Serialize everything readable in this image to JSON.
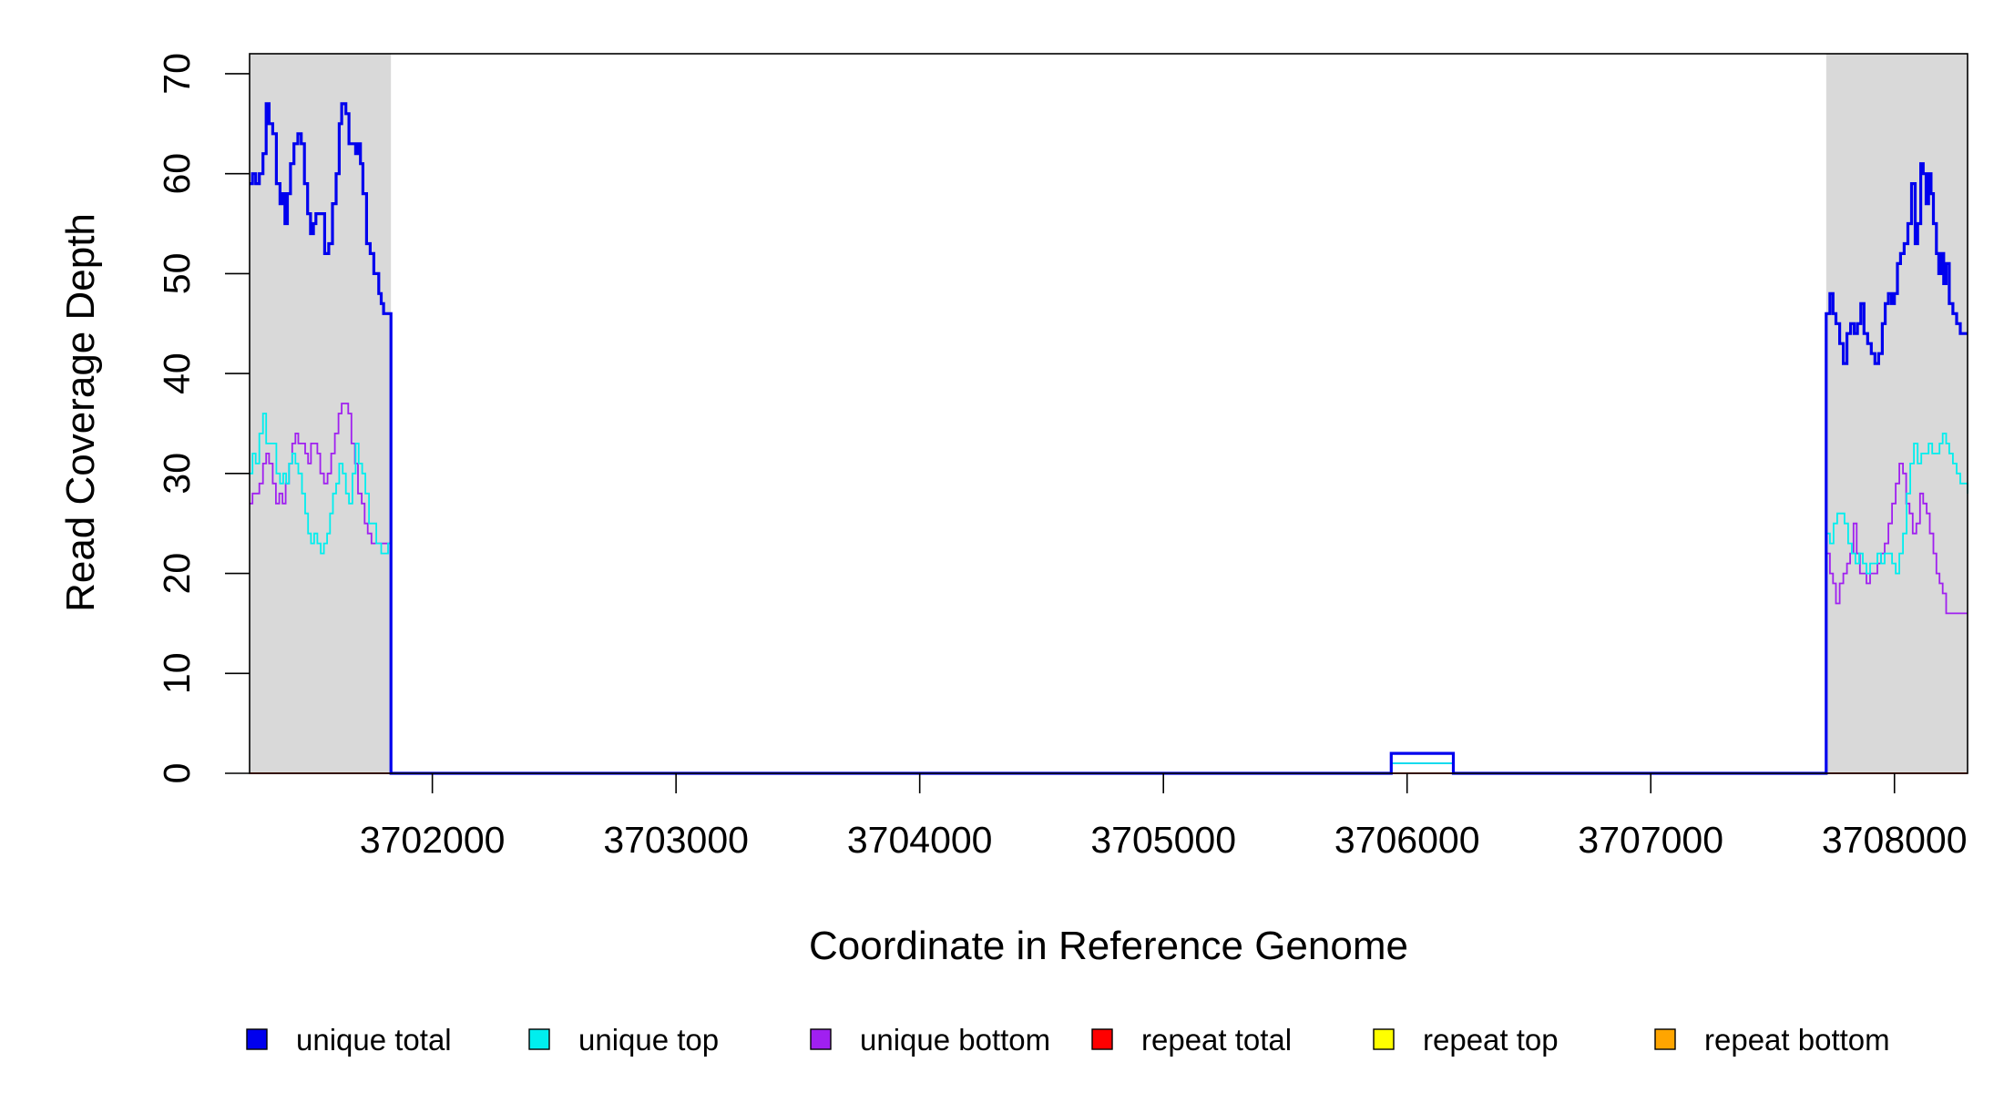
{
  "chart_data": {
    "type": "line",
    "step": true,
    "title": "",
    "xlabel": "Coordinate in Reference Genome",
    "ylabel": "Read Coverage Depth",
    "xlim": [
      3701250,
      3708300
    ],
    "ylim": [
      0,
      72
    ],
    "x_ticks": [
      3702000,
      3703000,
      3704000,
      3705000,
      3706000,
      3707000,
      3708000
    ],
    "x_tick_labels": [
      "3702000",
      "3703000",
      "3704000",
      "3705000",
      "3706000",
      "3707000",
      "3708000"
    ],
    "y_ticks": [
      0,
      10,
      20,
      30,
      40,
      50,
      60,
      70
    ],
    "y_tick_labels": [
      "0",
      "10",
      "20",
      "30",
      "40",
      "50",
      "60",
      "70"
    ],
    "grid": false,
    "legend_position": "bottom",
    "shaded_regions": [
      {
        "x0": 3701250,
        "x1": 3701830,
        "color": "#d9d9d9"
      },
      {
        "x0": 3707720,
        "x1": 3708300,
        "color": "#d9d9d9"
      }
    ],
    "series": [
      {
        "name": "unique total",
        "color": "#0000ee",
        "width": 3.2,
        "points": [
          [
            3701250,
            59
          ],
          [
            3701262,
            60
          ],
          [
            3701275,
            59
          ],
          [
            3701290,
            60
          ],
          [
            3701305,
            62
          ],
          [
            3701318,
            67
          ],
          [
            3701330,
            65
          ],
          [
            3701345,
            64
          ],
          [
            3701360,
            59
          ],
          [
            3701375,
            57
          ],
          [
            3701385,
            58
          ],
          [
            3701395,
            55
          ],
          [
            3701405,
            58
          ],
          [
            3701418,
            61
          ],
          [
            3701432,
            63
          ],
          [
            3701448,
            64
          ],
          [
            3701462,
            63
          ],
          [
            3701475,
            59
          ],
          [
            3701488,
            56
          ],
          [
            3701500,
            54
          ],
          [
            3701512,
            55
          ],
          [
            3701522,
            56
          ],
          [
            3701540,
            56
          ],
          [
            3701558,
            52
          ],
          [
            3701575,
            53
          ],
          [
            3701590,
            57
          ],
          [
            3701605,
            60
          ],
          [
            3701618,
            65
          ],
          [
            3701628,
            67
          ],
          [
            3701645,
            66
          ],
          [
            3701658,
            63
          ],
          [
            3701672,
            63
          ],
          [
            3701685,
            62
          ],
          [
            3701695,
            63
          ],
          [
            3701705,
            61
          ],
          [
            3701715,
            58
          ],
          [
            3701730,
            53
          ],
          [
            3701745,
            52
          ],
          [
            3701760,
            50
          ],
          [
            3701780,
            48
          ],
          [
            3701790,
            47
          ],
          [
            3701800,
            46
          ],
          [
            3701818,
            46
          ],
          [
            3701830,
            0
          ],
          [
            3705935,
            0
          ],
          [
            3705935,
            2
          ],
          [
            3706190,
            2
          ],
          [
            3706190,
            0
          ],
          [
            3707720,
            0
          ],
          [
            3707720,
            46
          ],
          [
            3707735,
            48
          ],
          [
            3707748,
            46
          ],
          [
            3707760,
            45
          ],
          [
            3707775,
            43
          ],
          [
            3707790,
            41
          ],
          [
            3707805,
            44
          ],
          [
            3707820,
            45
          ],
          [
            3707835,
            44
          ],
          [
            3707848,
            45
          ],
          [
            3707862,
            47
          ],
          [
            3707875,
            44
          ],
          [
            3707890,
            43
          ],
          [
            3707905,
            42
          ],
          [
            3707920,
            41
          ],
          [
            3707935,
            42
          ],
          [
            3707950,
            45
          ],
          [
            3707962,
            47
          ],
          [
            3707975,
            48
          ],
          [
            3707988,
            47
          ],
          [
            3708000,
            48
          ],
          [
            3708012,
            51
          ],
          [
            3708025,
            52
          ],
          [
            3708040,
            53
          ],
          [
            3708055,
            55
          ],
          [
            3708070,
            59
          ],
          [
            3708085,
            53
          ],
          [
            3708095,
            55
          ],
          [
            3708108,
            61
          ],
          [
            3708118,
            60
          ],
          [
            3708130,
            57
          ],
          [
            3708140,
            60
          ],
          [
            3708150,
            58
          ],
          [
            3708160,
            55
          ],
          [
            3708172,
            52
          ],
          [
            3708182,
            50
          ],
          [
            3708192,
            52
          ],
          [
            3708202,
            49
          ],
          [
            3708212,
            51
          ],
          [
            3708225,
            47
          ],
          [
            3708240,
            46
          ],
          [
            3708255,
            45
          ],
          [
            3708270,
            44
          ],
          [
            3708300,
            44
          ]
        ]
      },
      {
        "name": "unique top",
        "color": "#00eeee",
        "width": 1.8,
        "points": [
          [
            3701250,
            30
          ],
          [
            3701262,
            32
          ],
          [
            3701275,
            31
          ],
          [
            3701290,
            34
          ],
          [
            3701305,
            36
          ],
          [
            3701318,
            33
          ],
          [
            3701330,
            33
          ],
          [
            3701345,
            33
          ],
          [
            3701360,
            30
          ],
          [
            3701375,
            29
          ],
          [
            3701388,
            30
          ],
          [
            3701400,
            29
          ],
          [
            3701412,
            31
          ],
          [
            3701425,
            32
          ],
          [
            3701438,
            31
          ],
          [
            3701450,
            30
          ],
          [
            3701465,
            28
          ],
          [
            3701478,
            26
          ],
          [
            3701490,
            24
          ],
          [
            3701502,
            23
          ],
          [
            3701515,
            24
          ],
          [
            3701528,
            23
          ],
          [
            3701542,
            22
          ],
          [
            3701555,
            23
          ],
          [
            3701568,
            24
          ],
          [
            3701580,
            26
          ],
          [
            3701592,
            28
          ],
          [
            3701605,
            29
          ],
          [
            3701618,
            31
          ],
          [
            3701632,
            30
          ],
          [
            3701645,
            28
          ],
          [
            3701658,
            27
          ],
          [
            3701672,
            30
          ],
          [
            3701685,
            33
          ],
          [
            3701698,
            31
          ],
          [
            3701712,
            30
          ],
          [
            3701725,
            28
          ],
          [
            3701740,
            25
          ],
          [
            3701755,
            25
          ],
          [
            3701770,
            23
          ],
          [
            3701790,
            22
          ],
          [
            3701818,
            23
          ],
          [
            3701830,
            0
          ],
          [
            3705935,
            0
          ],
          [
            3705935,
            1
          ],
          [
            3706190,
            1
          ],
          [
            3706190,
            0
          ],
          [
            3707720,
            0
          ],
          [
            3707720,
            24
          ],
          [
            3707735,
            23
          ],
          [
            3707750,
            25
          ],
          [
            3707765,
            26
          ],
          [
            3707780,
            26
          ],
          [
            3707795,
            25
          ],
          [
            3707810,
            23
          ],
          [
            3707825,
            22
          ],
          [
            3707840,
            21
          ],
          [
            3707855,
            22
          ],
          [
            3707870,
            21
          ],
          [
            3707885,
            20
          ],
          [
            3707900,
            21
          ],
          [
            3707915,
            21
          ],
          [
            3707930,
            22
          ],
          [
            3707945,
            21
          ],
          [
            3707960,
            22
          ],
          [
            3707975,
            22
          ],
          [
            3707990,
            21
          ],
          [
            3708005,
            20
          ],
          [
            3708020,
            22
          ],
          [
            3708035,
            24
          ],
          [
            3708050,
            28
          ],
          [
            3708065,
            31
          ],
          [
            3708080,
            33
          ],
          [
            3708095,
            31
          ],
          [
            3708110,
            32
          ],
          [
            3708125,
            32
          ],
          [
            3708140,
            33
          ],
          [
            3708155,
            32
          ],
          [
            3708170,
            32
          ],
          [
            3708185,
            33
          ],
          [
            3708198,
            34
          ],
          [
            3708212,
            33
          ],
          [
            3708225,
            32
          ],
          [
            3708240,
            31
          ],
          [
            3708255,
            30
          ],
          [
            3708270,
            29
          ],
          [
            3708300,
            28
          ]
        ]
      },
      {
        "name": "unique bottom",
        "color": "#a020f0",
        "width": 1.8,
        "points": [
          [
            3701250,
            27
          ],
          [
            3701262,
            28
          ],
          [
            3701275,
            28
          ],
          [
            3701290,
            29
          ],
          [
            3701305,
            31
          ],
          [
            3701318,
            32
          ],
          [
            3701330,
            31
          ],
          [
            3701345,
            29
          ],
          [
            3701358,
            27
          ],
          [
            3701372,
            28
          ],
          [
            3701385,
            27
          ],
          [
            3701398,
            29
          ],
          [
            3701412,
            31
          ],
          [
            3701425,
            33
          ],
          [
            3701438,
            34
          ],
          [
            3701450,
            33
          ],
          [
            3701465,
            33
          ],
          [
            3701478,
            32
          ],
          [
            3701490,
            31
          ],
          [
            3701502,
            33
          ],
          [
            3701515,
            33
          ],
          [
            3701528,
            32
          ],
          [
            3701540,
            30
          ],
          [
            3701555,
            29
          ],
          [
            3701570,
            30
          ],
          [
            3701585,
            32
          ],
          [
            3701600,
            34
          ],
          [
            3701615,
            36
          ],
          [
            3701628,
            37
          ],
          [
            3701642,
            37
          ],
          [
            3701655,
            36
          ],
          [
            3701668,
            33
          ],
          [
            3701682,
            31
          ],
          [
            3701695,
            28
          ],
          [
            3701710,
            27
          ],
          [
            3701722,
            25
          ],
          [
            3701735,
            24
          ],
          [
            3701750,
            23
          ],
          [
            3701770,
            23
          ],
          [
            3701818,
            23
          ],
          [
            3701830,
            0
          ],
          [
            3705935,
            0
          ],
          [
            3705935,
            1
          ],
          [
            3706190,
            1
          ],
          [
            3706190,
            0
          ],
          [
            3707720,
            0
          ],
          [
            3707720,
            22
          ],
          [
            3707735,
            20
          ],
          [
            3707748,
            19
          ],
          [
            3707760,
            17
          ],
          [
            3707775,
            19
          ],
          [
            3707790,
            20
          ],
          [
            3707805,
            21
          ],
          [
            3707818,
            22
          ],
          [
            3707832,
            25
          ],
          [
            3707845,
            22
          ],
          [
            3707858,
            20
          ],
          [
            3707872,
            20
          ],
          [
            3707885,
            19
          ],
          [
            3707900,
            20
          ],
          [
            3707915,
            20
          ],
          [
            3707930,
            21
          ],
          [
            3707945,
            22
          ],
          [
            3707960,
            23
          ],
          [
            3707975,
            25
          ],
          [
            3707990,
            27
          ],
          [
            3708005,
            29
          ],
          [
            3708020,
            31
          ],
          [
            3708035,
            30
          ],
          [
            3708048,
            27
          ],
          [
            3708062,
            26
          ],
          [
            3708075,
            24
          ],
          [
            3708090,
            25
          ],
          [
            3708105,
            28
          ],
          [
            3708118,
            27
          ],
          [
            3708132,
            26
          ],
          [
            3708145,
            24
          ],
          [
            3708160,
            22
          ],
          [
            3708172,
            20
          ],
          [
            3708185,
            19
          ],
          [
            3708198,
            18
          ],
          [
            3708212,
            16
          ],
          [
            3708228,
            16
          ],
          [
            3708250,
            16
          ],
          [
            3708300,
            16
          ]
        ]
      },
      {
        "name": "repeat total",
        "color": "#ff0000",
        "width": 1.8,
        "points": [
          [
            3701250,
            0
          ],
          [
            3708300,
            0
          ]
        ]
      },
      {
        "name": "repeat top",
        "color": "#ffff00",
        "width": 1.8,
        "points": [
          [
            3701250,
            0
          ],
          [
            3708300,
            0
          ]
        ]
      },
      {
        "name": "repeat bottom",
        "color": "#ffa500",
        "width": 1.8,
        "points": [
          [
            3701250,
            0
          ],
          [
            3708300,
            0
          ]
        ]
      }
    ]
  }
}
